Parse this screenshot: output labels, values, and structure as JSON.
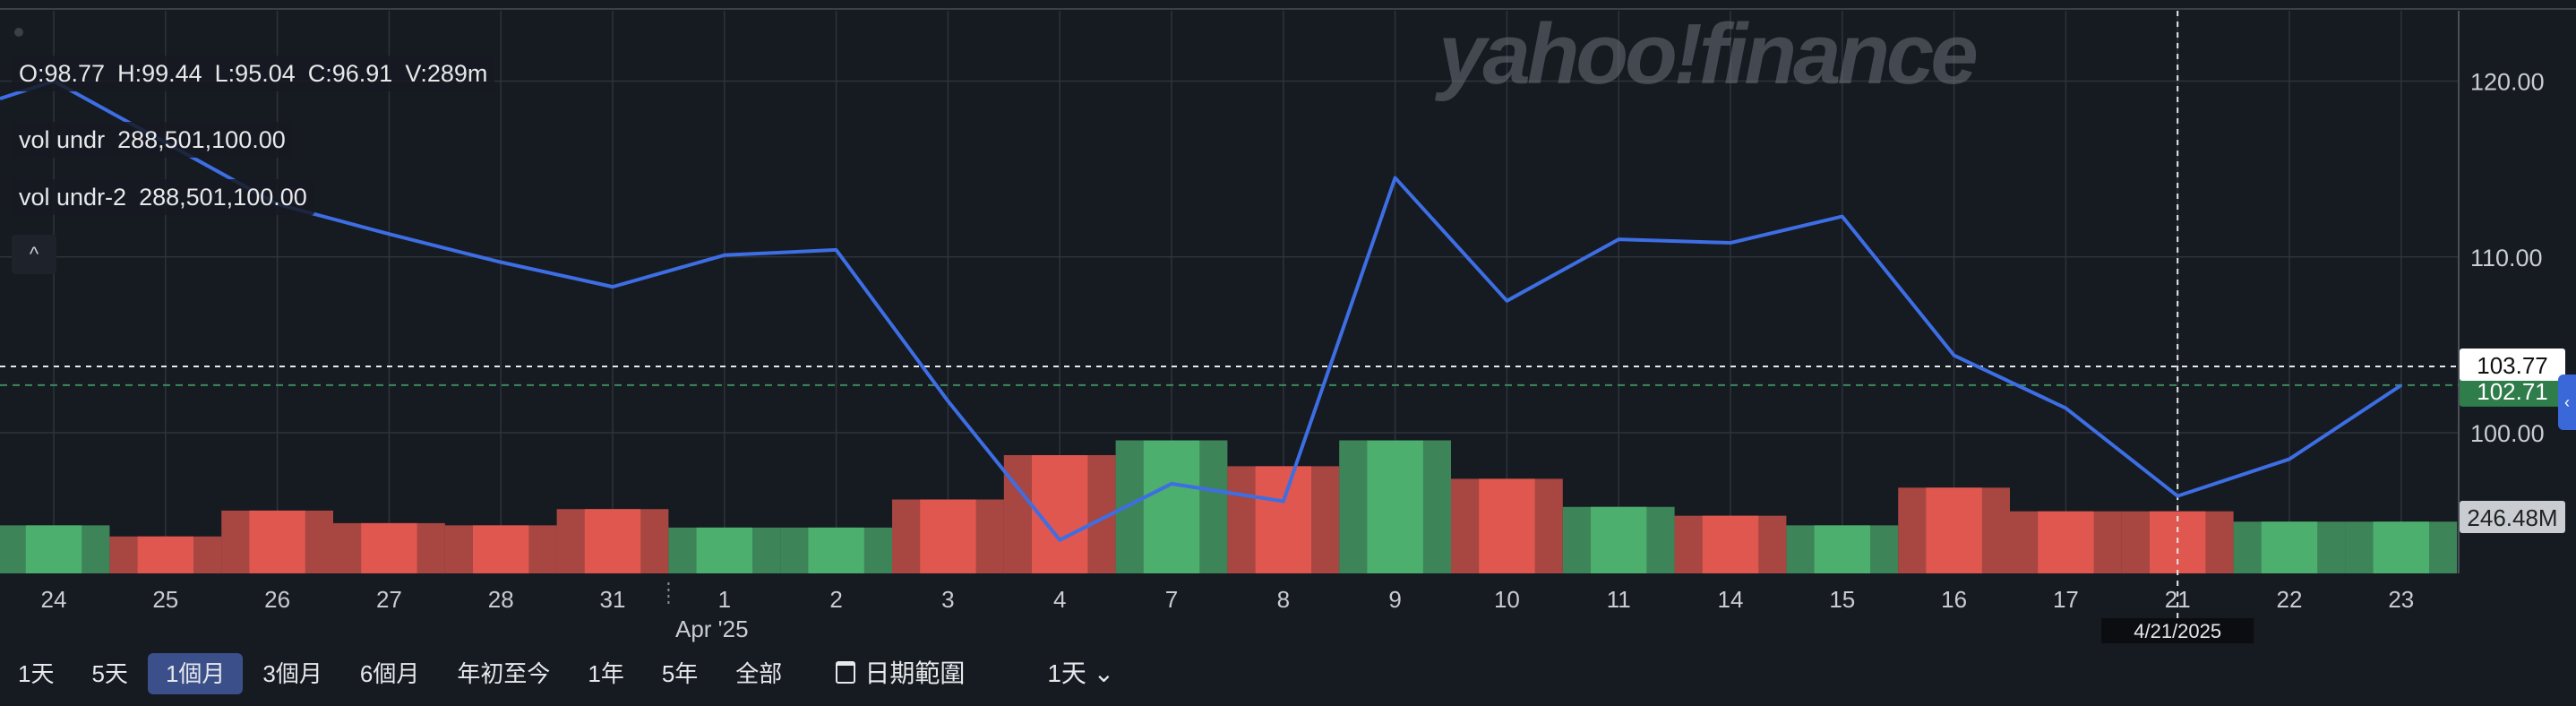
{
  "ohlcv": {
    "o": "O:98.77",
    "h": "H:99.44",
    "l": "L:95.04",
    "c": "C:96.91",
    "v": "V:289m"
  },
  "indicators": [
    {
      "name": "vol undr",
      "value": "288,501,100.00"
    },
    {
      "name": "vol undr-2",
      "value": "288,501,100.00"
    }
  ],
  "collapse_label": "^",
  "watermark": "yahoo!finance",
  "range_buttons": [
    "1天",
    "5天",
    "1個月",
    "3個月",
    "6個月",
    "年初至今",
    "1年",
    "5年",
    "全部"
  ],
  "active_range": "1個月",
  "date_range_label": "日期範圍",
  "interval_label": "1天 ⌄",
  "colors": {
    "line": "#3d6ee3",
    "up": "#4caf6e",
    "down": "#e0574f",
    "bg": "#161a21",
    "grid": "#2e333c"
  },
  "chart_data": {
    "type": "line",
    "x": [
      "24",
      "25",
      "26",
      "27",
      "28",
      "31",
      "1",
      "2",
      "3",
      "4",
      "7",
      "8",
      "9",
      "10",
      "11",
      "14",
      "15",
      "16",
      "17",
      "21",
      "22",
      "23"
    ],
    "x_period_label": "Apr '25",
    "series": [
      {
        "values": [
          120.0,
          116.5,
          113.0,
          111.3,
          109.7,
          108.3,
          110.1,
          110.4,
          101.8,
          93.9,
          97.1,
          96.1,
          114.5,
          107.5,
          111.0,
          110.8,
          112.3,
          104.4,
          101.4,
          96.4,
          98.5,
          102.7
        ]
      }
    ],
    "volume": [
      {
        "v": 65,
        "dir": "up"
      },
      {
        "v": 50,
        "dir": "down"
      },
      {
        "v": 85,
        "dir": "down"
      },
      {
        "v": 68,
        "dir": "down"
      },
      {
        "v": 65,
        "dir": "down"
      },
      {
        "v": 87,
        "dir": "down"
      },
      {
        "v": 62,
        "dir": "up"
      },
      {
        "v": 62,
        "dir": "up"
      },
      {
        "v": 100,
        "dir": "down"
      },
      {
        "v": 160,
        "dir": "down"
      },
      {
        "v": 180,
        "dir": "up"
      },
      {
        "v": 145,
        "dir": "down"
      },
      {
        "v": 180,
        "dir": "up"
      },
      {
        "v": 128,
        "dir": "down"
      },
      {
        "v": 90,
        "dir": "up"
      },
      {
        "v": 78,
        "dir": "down"
      },
      {
        "v": 65,
        "dir": "up"
      },
      {
        "v": 116,
        "dir": "down"
      },
      {
        "v": 84,
        "dir": "down"
      },
      {
        "v": 84,
        "dir": "down"
      },
      {
        "v": 70,
        "dir": "up"
      },
      {
        "v": 70,
        "dir": "up"
      }
    ],
    "y_ticks": [
      "120.00",
      "110.00",
      "100.00"
    ],
    "ylim": [
      92,
      124
    ],
    "price_labels": {
      "last": "103.77",
      "prev": "102.71",
      "volume": "246.48M"
    },
    "crosshair": {
      "x": "21",
      "date_label": "4/21/2025",
      "y": 103.77
    }
  }
}
